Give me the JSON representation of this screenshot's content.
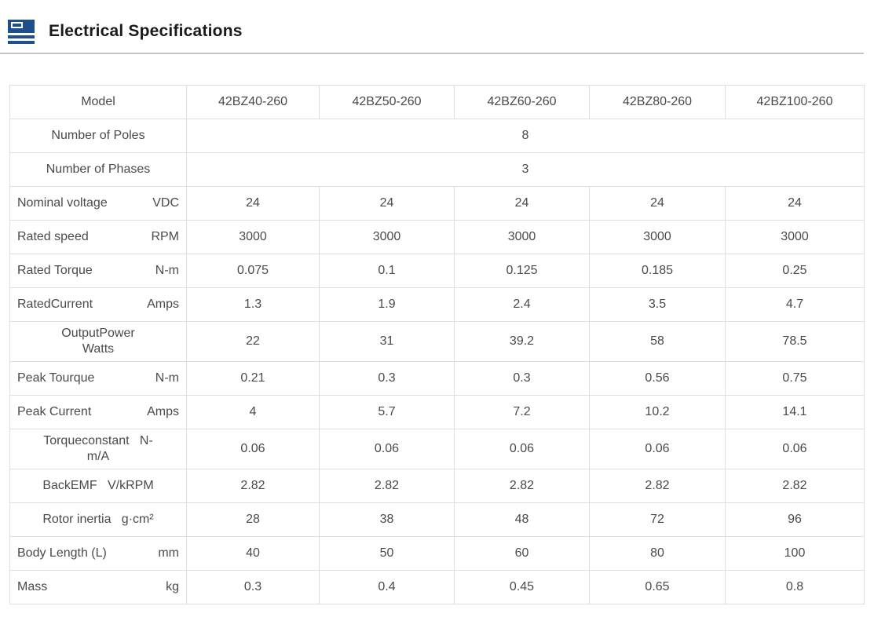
{
  "colors": {
    "accent": "#1d4e8e",
    "table-border": "#dedede",
    "cell-text": "#4a4a4a",
    "title-text": "#1a1a1a",
    "divider": "#c6c6c6"
  },
  "header": {
    "title": "Electrical Specifications",
    "icon": "spec-list-icon"
  },
  "table": {
    "header": {
      "label": "Model",
      "models": [
        "42BZ40-260",
        "42BZ50-260",
        "42BZ60-260",
        "42BZ80-260",
        "42BZ100-260"
      ]
    },
    "rows": [
      {
        "name": "number-of-poles",
        "layout": "center",
        "lines": [
          "Number of Poles"
        ],
        "merged": "8"
      },
      {
        "name": "number-of-phases",
        "layout": "center",
        "lines": [
          "Number of Phases"
        ],
        "merged": "3"
      },
      {
        "name": "nominal-voltage",
        "layout": "split",
        "label": "Nominal voltage",
        "unit": "VDC",
        "values": [
          "24",
          "24",
          "24",
          "24",
          "24"
        ]
      },
      {
        "name": "rated-speed",
        "layout": "split",
        "label": "Rated speed",
        "unit": "RPM",
        "values": [
          "3000",
          "3000",
          "3000",
          "3000",
          "3000"
        ]
      },
      {
        "name": "rated-torque",
        "layout": "split",
        "label": "Rated Torque",
        "unit": "N-m",
        "values": [
          "0.075",
          "0.1",
          "0.125",
          "0.185",
          "0.25"
        ]
      },
      {
        "name": "rated-current",
        "layout": "split",
        "label": "RatedCurrent",
        "unit": "Amps",
        "values": [
          "1.3",
          "1.9",
          "2.4",
          "3.5",
          "4.7"
        ]
      },
      {
        "name": "output-power",
        "layout": "center",
        "lines": [
          "OutputPower",
          "Watts"
        ],
        "values": [
          "22",
          "31",
          "39.2",
          "58",
          "78.5"
        ]
      },
      {
        "name": "peak-torque",
        "layout": "split",
        "label": "Peak Tourque",
        "unit": "N-m",
        "values": [
          "0.21",
          "0.3",
          "0.3",
          "0.56",
          "0.75"
        ]
      },
      {
        "name": "peak-current",
        "layout": "split",
        "label": "Peak Current",
        "unit": "Amps",
        "values": [
          "4",
          "5.7",
          "7.2",
          "10.2",
          "14.1"
        ]
      },
      {
        "name": "torque-constant",
        "layout": "center",
        "lines": [
          "Torqueconstant   N-",
          "m/A"
        ],
        "values": [
          "0.06",
          "0.06",
          "0.06",
          "0.06",
          "0.06"
        ]
      },
      {
        "name": "back-emf",
        "layout": "center",
        "lines": [
          "BackEMF   V/kRPM"
        ],
        "values": [
          "2.82",
          "2.82",
          "2.82",
          "2.82",
          "2.82"
        ]
      },
      {
        "name": "rotor-inertia",
        "layout": "center",
        "lines": [
          "Rotor inertia   g·cm²"
        ],
        "values": [
          "28",
          "38",
          "48",
          "72",
          "96"
        ]
      },
      {
        "name": "body-length",
        "layout": "split",
        "label": "Body Length (L)",
        "unit": "mm",
        "values": [
          "40",
          "50",
          "60",
          "80",
          "100"
        ]
      },
      {
        "name": "mass",
        "layout": "split",
        "label": "Mass",
        "unit": "kg",
        "values": [
          "0.3",
          "0.4",
          "0.45",
          "0.65",
          "0.8"
        ]
      }
    ]
  }
}
